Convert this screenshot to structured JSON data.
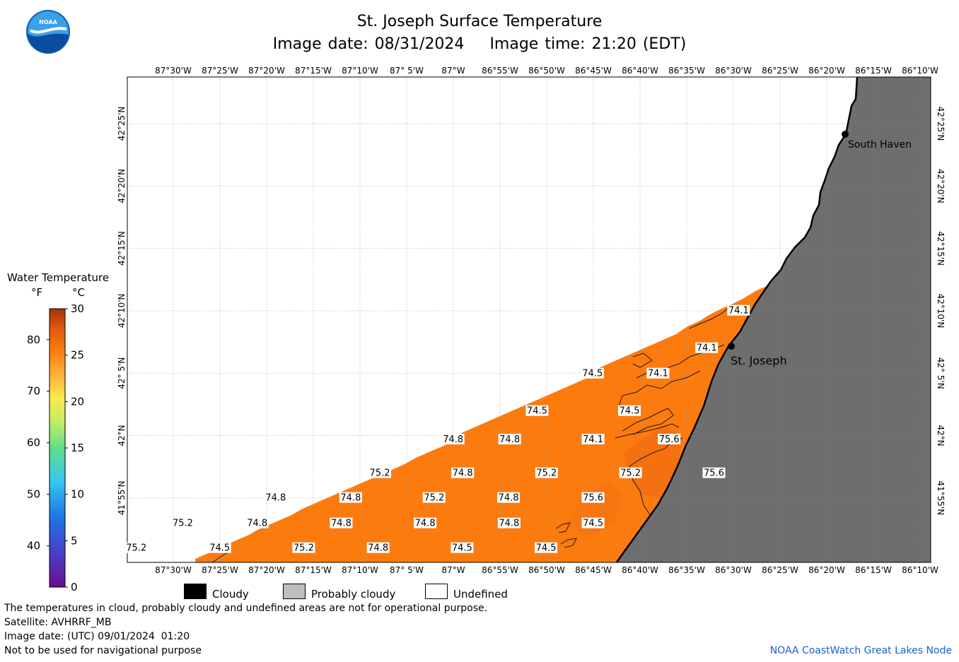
{
  "header": {
    "title": "St. Joseph Surface Temperature",
    "image_date": "Image date: 08/31/2024",
    "image_time": "Image time: 21:20 (EDT)",
    "logo_text": "NOAA"
  },
  "map": {
    "lon_labels": [
      "87°30'W",
      "87°25'W",
      "87°20'W",
      "87°15'W",
      "87°10'W",
      "87° 5'W",
      "87°W",
      "86°55'W",
      "86°50'W",
      "86°45'W",
      "86°40'W",
      "86°35'W",
      "86°30'W",
      "86°25'W",
      "86°20'W",
      "86°15'W",
      "86°10'W"
    ],
    "lat_labels": [
      "42°25'N",
      "42°20'N",
      "42°15'N",
      "42°10'N",
      "42° 5'N",
      "42°N",
      "41°55'N"
    ],
    "places": [
      {
        "name": "South Haven",
        "lon": -86.29,
        "lat": 42.4
      },
      {
        "name": "St. Joseph",
        "lon": -86.5,
        "lat": 42.11
      }
    ],
    "temperature_labels_F": [
      {
        "value": "74.1",
        "lon": -86.49,
        "lat": 42.167
      },
      {
        "value": "74.1",
        "lon": -86.547,
        "lat": 42.117
      },
      {
        "value": "74.5",
        "lon": -86.751,
        "lat": 42.083
      },
      {
        "value": "74.1",
        "lon": -86.634,
        "lat": 42.083
      },
      {
        "value": "74.5",
        "lon": -86.85,
        "lat": 42.033
      },
      {
        "value": "74.5",
        "lon": -86.685,
        "lat": 42.033
      },
      {
        "value": "74.8",
        "lon": -87.0,
        "lat": 41.995
      },
      {
        "value": "74.8",
        "lon": -86.899,
        "lat": 41.995
      },
      {
        "value": "74.1",
        "lon": -86.75,
        "lat": 41.995
      },
      {
        "value": "75.6",
        "lon": -86.614,
        "lat": 41.995
      },
      {
        "value": "75.2",
        "lon": -87.131,
        "lat": 41.95
      },
      {
        "value": "74.8",
        "lon": -86.983,
        "lat": 41.95
      },
      {
        "value": "75.2",
        "lon": -86.833,
        "lat": 41.95
      },
      {
        "value": "75.2",
        "lon": -86.683,
        "lat": 41.95
      },
      {
        "value": "75.6",
        "lon": -86.534,
        "lat": 41.95
      },
      {
        "value": "74.8",
        "lon": -87.317,
        "lat": 41.917
      },
      {
        "value": "74.8",
        "lon": -87.183,
        "lat": 41.917
      },
      {
        "value": "75.2",
        "lon": -87.034,
        "lat": 41.917
      },
      {
        "value": "74.8",
        "lon": -86.901,
        "lat": 41.917
      },
      {
        "value": "75.6",
        "lon": -86.75,
        "lat": 41.917
      },
      {
        "value": "75.2",
        "lon": -87.483,
        "lat": 41.883
      },
      {
        "value": "74.8",
        "lon": -87.35,
        "lat": 41.883
      },
      {
        "value": "74.8",
        "lon": -87.2,
        "lat": 41.883
      },
      {
        "value": "74.8",
        "lon": -87.05,
        "lat": 41.883
      },
      {
        "value": "74.8",
        "lon": -86.9,
        "lat": 41.883
      },
      {
        "value": "74.5",
        "lon": -86.75,
        "lat": 41.883
      },
      {
        "value": "75.2",
        "lon": -87.566,
        "lat": 41.85
      },
      {
        "value": "74.5",
        "lon": -87.417,
        "lat": 41.85
      },
      {
        "value": "75.2",
        "lon": -87.267,
        "lat": 41.85
      },
      {
        "value": "74.8",
        "lon": -87.134,
        "lat": 41.85
      },
      {
        "value": "74.5",
        "lon": -86.984,
        "lat": 41.85
      },
      {
        "value": "74.5",
        "lon": -86.834,
        "lat": 41.85
      }
    ],
    "colors": {
      "water": "#fc7b0f",
      "water_warm": "#f26d10",
      "land": "#6e6e6e",
      "grid": "#c8c8c8",
      "coast": "#000000"
    }
  },
  "legend": {
    "title": "Water Temperature",
    "unit_f": "°F",
    "unit_c": "°C",
    "f_ticks": [
      "80",
      "70",
      "60",
      "50",
      "40"
    ],
    "c_ticks": [
      "30",
      "25",
      "20",
      "15",
      "10",
      "5",
      "0"
    ],
    "categories": [
      "Cloudy",
      "Probably cloudy",
      "Undefined"
    ],
    "category_colors": [
      "#000000",
      "#bdbdbd",
      "#ffffff"
    ]
  },
  "footer": {
    "note": "The temperatures in cloud, probably cloudy and undefined areas are not for operational purpose.",
    "satellite": "Satellite: AVHRRF_MB",
    "utc_date": "Image date: (UTC) 09/01/2024  01:20",
    "nav_warning": "Not to be used for navigational purpose",
    "credit": "NOAA CoastWatch Great Lakes Node"
  }
}
